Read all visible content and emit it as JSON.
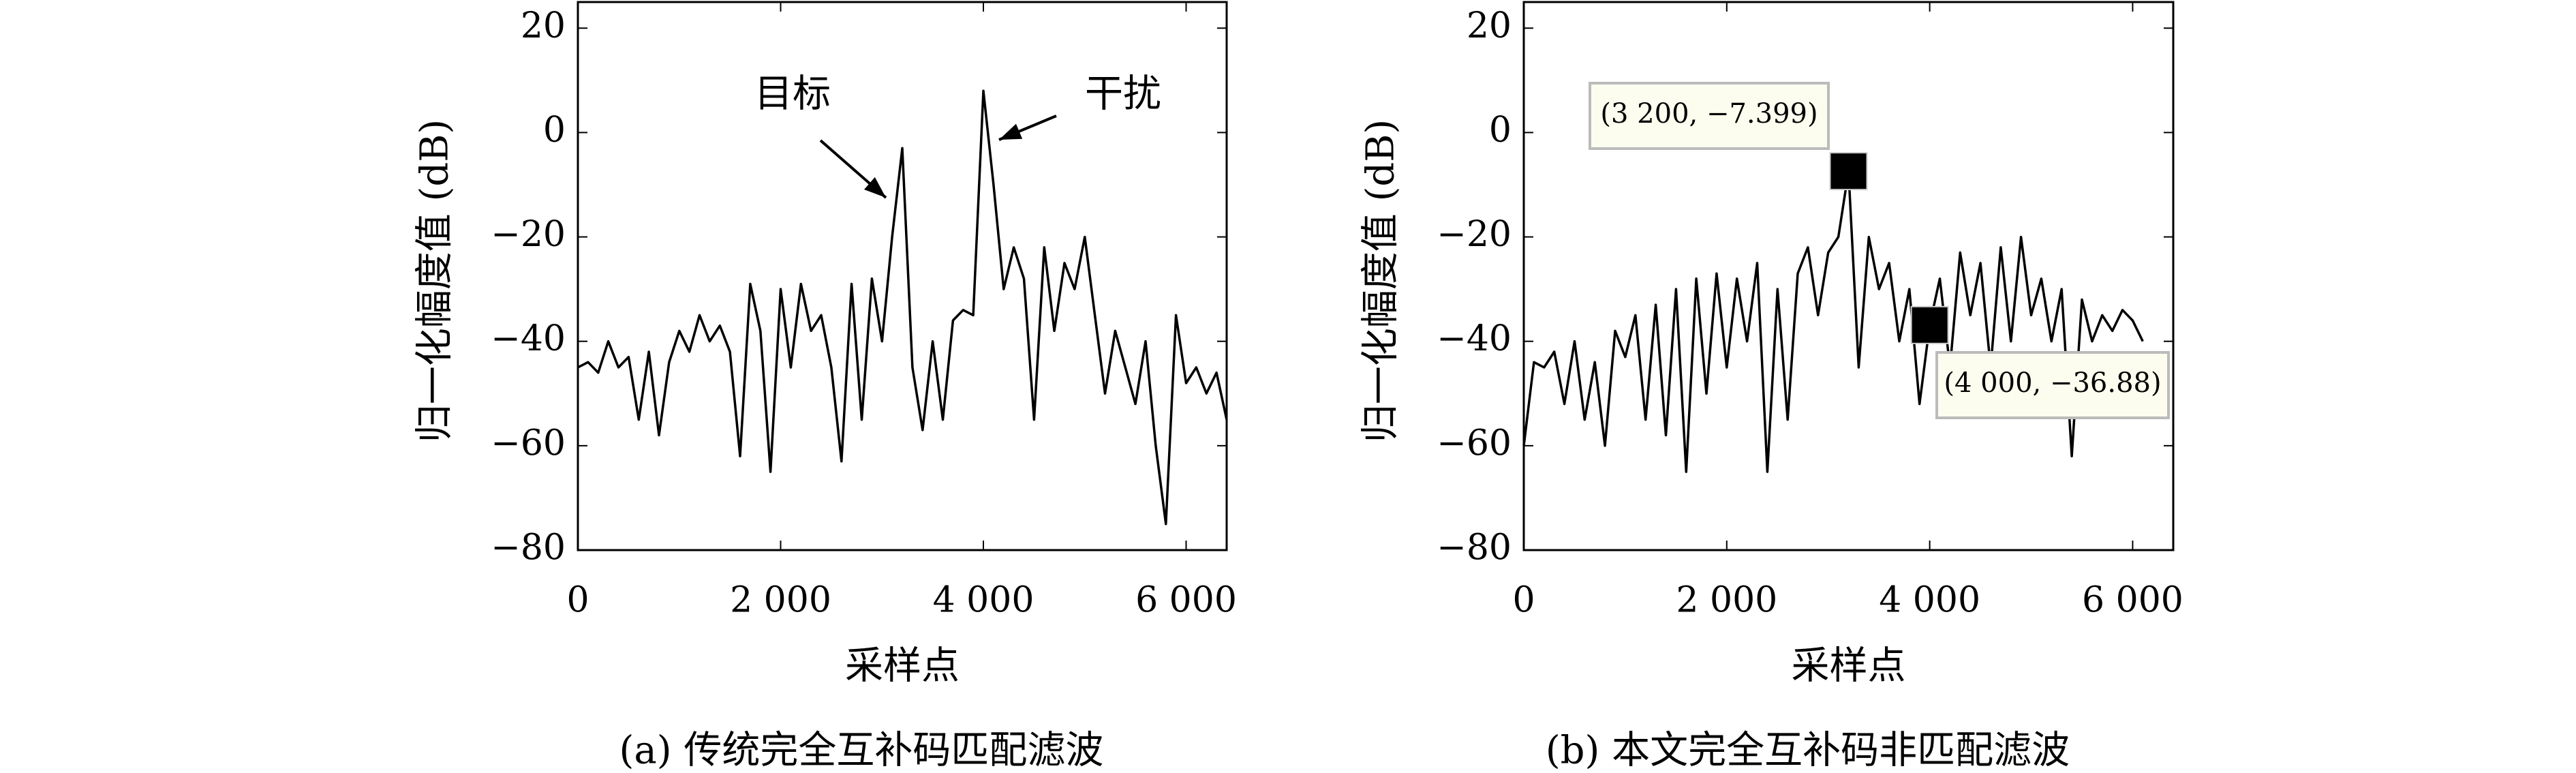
{
  "chart_data": [
    {
      "type": "line",
      "caption": "(a) 传统完全互补码匹配滤波",
      "xlabel": "采样点",
      "ylabel": "归一化幅度值 (dB)",
      "xlim": [
        0,
        6400
      ],
      "ylim": [
        -80,
        25
      ],
      "xticks": [
        0,
        {
          "value": 2000,
          "label": "2 000"
        },
        {
          "value": 4000,
          "label": "4 000"
        },
        {
          "value": 6000,
          "label": "6 000"
        }
      ],
      "yticks": [
        20,
        0,
        {
          "value": -20,
          "label": "−20"
        },
        {
          "value": -40,
          "label": "−40"
        },
        {
          "value": -60,
          "label": "−60"
        },
        {
          "value": -80,
          "label": "−80"
        }
      ],
      "x": [
        0,
        100,
        200,
        300,
        400,
        500,
        600,
        700,
        800,
        900,
        1000,
        1100,
        1200,
        1300,
        1400,
        1500,
        1600,
        1700,
        1800,
        1900,
        2000,
        2100,
        2200,
        2300,
        2400,
        2500,
        2600,
        2700,
        2800,
        2900,
        3000,
        3100,
        3200,
        3300,
        3400,
        3500,
        3600,
        3700,
        3800,
        3900,
        4000,
        4100,
        4200,
        4300,
        4400,
        4500,
        4600,
        4700,
        4800,
        4900,
        5000,
        5100,
        5200,
        5300,
        5400,
        5500,
        5600,
        5700,
        5800,
        5900,
        6000,
        6100,
        6200,
        6300,
        6400
      ],
      "series": [
        {
          "color": "#000000",
          "values": [
            -45,
            -44,
            -46,
            -40,
            -45,
            -43,
            -55,
            -42,
            -58,
            -44,
            -38,
            -42,
            -35,
            -40,
            -37,
            -42,
            -62,
            -29,
            -38,
            -65,
            -30,
            -45,
            -29,
            -38,
            -35,
            -45,
            -63,
            -29,
            -55,
            -28,
            -40,
            -20,
            -3,
            -45,
            -57,
            -40,
            -55,
            -36,
            -34,
            -35,
            8,
            -10,
            -30,
            -22,
            -28,
            -55,
            -22,
            -38,
            -25,
            -30,
            -20,
            -35,
            -50,
            -38,
            -45,
            -52,
            -40,
            -60,
            -75,
            -35,
            -48,
            -45,
            -50,
            -46,
            -55
          ]
        }
      ],
      "annotations": [
        {
          "text": "目标"
        },
        {
          "text": "干扰"
        }
      ]
    },
    {
      "type": "line",
      "caption": "(b) 本文完全互补码非匹配滤波",
      "xlabel": "采样点",
      "ylabel": "归一化幅度值 (dB)",
      "xlim": [
        0,
        6400
      ],
      "ylim": [
        -80,
        25
      ],
      "xticks": [
        0,
        {
          "value": 2000,
          "label": "2 000"
        },
        {
          "value": 4000,
          "label": "4 000"
        },
        {
          "value": 6000,
          "label": "6 000"
        }
      ],
      "yticks": [
        20,
        0,
        {
          "value": -20,
          "label": "−20"
        },
        {
          "value": -40,
          "label": "−40"
        },
        {
          "value": -60,
          "label": "−60"
        },
        {
          "value": -80,
          "label": "−80"
        }
      ],
      "x": [
        0,
        100,
        200,
        300,
        400,
        500,
        600,
        700,
        800,
        900,
        1000,
        1100,
        1200,
        1300,
        1400,
        1500,
        1600,
        1700,
        1800,
        1900,
        2000,
        2100,
        2200,
        2300,
        2400,
        2500,
        2600,
        2700,
        2800,
        2900,
        3000,
        3100,
        3200,
        3300,
        3400,
        3500,
        3600,
        3700,
        3800,
        3900,
        4000,
        4100,
        4200,
        4300,
        4400,
        4500,
        4600,
        4700,
        4800,
        4900,
        5000,
        5100,
        5200,
        5300,
        5400,
        5500,
        5600,
        5700,
        5800,
        5900,
        6000,
        6100
      ],
      "series": [
        {
          "color": "#000000",
          "values": [
            -60,
            -44,
            -45,
            -42,
            -52,
            -40,
            -55,
            -44,
            -60,
            -38,
            -43,
            -35,
            -55,
            -33,
            -58,
            -30,
            -65,
            -28,
            -50,
            -27,
            -45,
            -28,
            -40,
            -25,
            -65,
            -30,
            -55,
            -27,
            -22,
            -35,
            -23,
            -20,
            -7.399,
            -45,
            -20,
            -30,
            -25,
            -40,
            -30,
            -52,
            -36.88,
            -28,
            -45,
            -23,
            -35,
            -25,
            -45,
            -22,
            -40,
            -20,
            -35,
            -28,
            -40,
            -30,
            -62,
            -32,
            -40,
            -35,
            -38,
            -34,
            -36,
            -40
          ]
        }
      ],
      "datatips": [
        {
          "x": 3200,
          "y": -7.399,
          "label": "(3 200, −7.399)"
        },
        {
          "x": 4000,
          "y": -36.88,
          "label": "(4 000, −36.88)"
        }
      ]
    }
  ]
}
